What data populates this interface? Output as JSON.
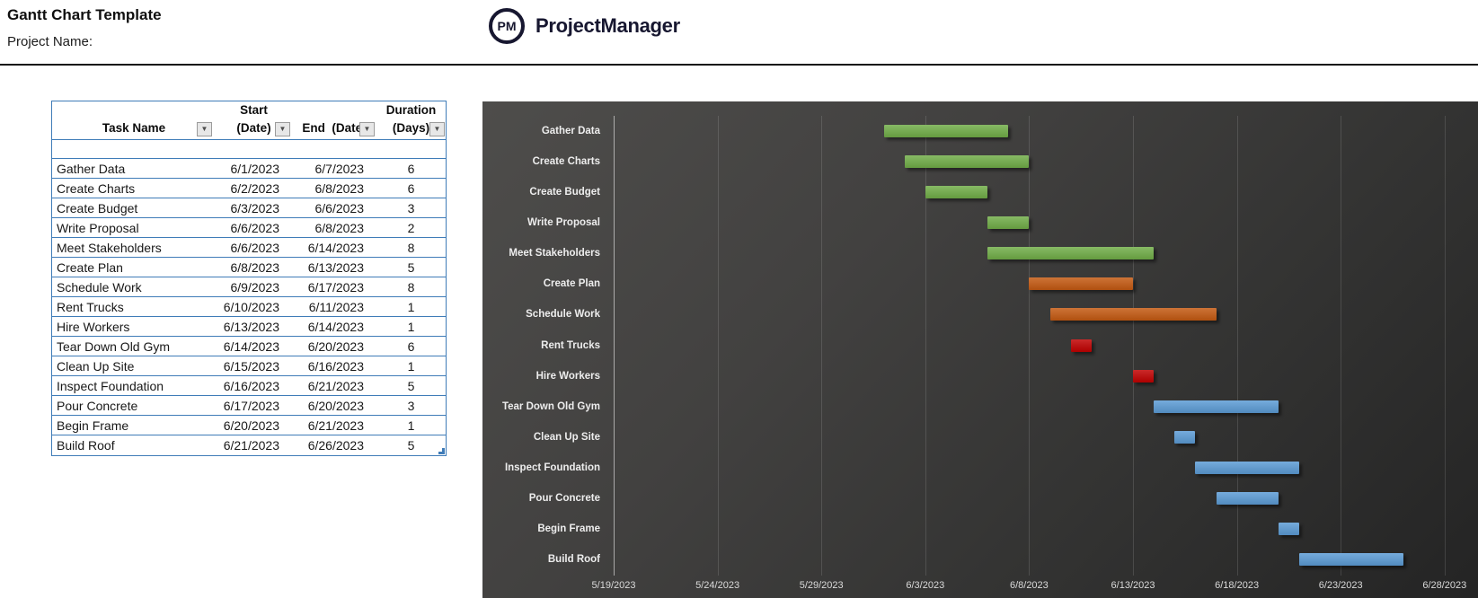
{
  "page": {
    "title": "Gantt Chart Template",
    "project_label": "Project Name:"
  },
  "logo": {
    "monogram": "PM",
    "name": "ProjectManager"
  },
  "table": {
    "headers": [
      {
        "line1": "",
        "line2": "Task Name"
      },
      {
        "line1": "Start",
        "line2": "(Date)"
      },
      {
        "line1": "",
        "line2": "End  (Date)"
      },
      {
        "line1": "Duration",
        "line2": "(Days)"
      }
    ],
    "filter_icon": "▼"
  },
  "chart_data": {
    "type": "gantt-bar",
    "title": "",
    "axis_range": {
      "start": "5/19/2023",
      "end": "6/28/2023",
      "tick_interval_days": 5
    },
    "ticks": [
      "5/19/2023",
      "5/24/2023",
      "5/29/2023",
      "6/3/2023",
      "6/8/2023",
      "6/13/2023",
      "6/18/2023",
      "6/23/2023",
      "6/28/2023"
    ],
    "grid": true,
    "legend": "none",
    "colors": {
      "green": "#70ad47",
      "orange": "#c45911",
      "red": "#c00000",
      "blue": "#5b9bd5"
    },
    "tasks": [
      {
        "name": "Gather Data",
        "start": "6/1/2023",
        "end": "6/7/2023",
        "duration": 6,
        "color": "green"
      },
      {
        "name": "Create Charts",
        "start": "6/2/2023",
        "end": "6/8/2023",
        "duration": 6,
        "color": "green"
      },
      {
        "name": "Create Budget",
        "start": "6/3/2023",
        "end": "6/6/2023",
        "duration": 3,
        "color": "green"
      },
      {
        "name": "Write Proposal",
        "start": "6/6/2023",
        "end": "6/8/2023",
        "duration": 2,
        "color": "green"
      },
      {
        "name": "Meet Stakeholders",
        "start": "6/6/2023",
        "end": "6/14/2023",
        "duration": 8,
        "color": "green"
      },
      {
        "name": "Create Plan",
        "start": "6/8/2023",
        "end": "6/13/2023",
        "duration": 5,
        "color": "orange"
      },
      {
        "name": "Schedule Work",
        "start": "6/9/2023",
        "end": "6/17/2023",
        "duration": 8,
        "color": "orange"
      },
      {
        "name": "Rent Trucks",
        "start": "6/10/2023",
        "end": "6/11/2023",
        "duration": 1,
        "color": "red"
      },
      {
        "name": "Hire Workers",
        "start": "6/13/2023",
        "end": "6/14/2023",
        "duration": 1,
        "color": "red"
      },
      {
        "name": "Tear Down Old Gym",
        "start": "6/14/2023",
        "end": "6/20/2023",
        "duration": 6,
        "color": "blue"
      },
      {
        "name": "Clean Up Site",
        "start": "6/15/2023",
        "end": "6/16/2023",
        "duration": 1,
        "color": "blue"
      },
      {
        "name": "Inspect Foundation",
        "start": "6/16/2023",
        "end": "6/21/2023",
        "duration": 5,
        "color": "blue"
      },
      {
        "name": "Pour Concrete",
        "start": "6/17/2023",
        "end": "6/20/2023",
        "duration": 3,
        "color": "blue"
      },
      {
        "name": "Begin Frame",
        "start": "6/20/2023",
        "end": "6/21/2023",
        "duration": 1,
        "color": "blue"
      },
      {
        "name": "Build Roof",
        "start": "6/21/2023",
        "end": "6/26/2023",
        "duration": 5,
        "color": "blue"
      }
    ]
  }
}
